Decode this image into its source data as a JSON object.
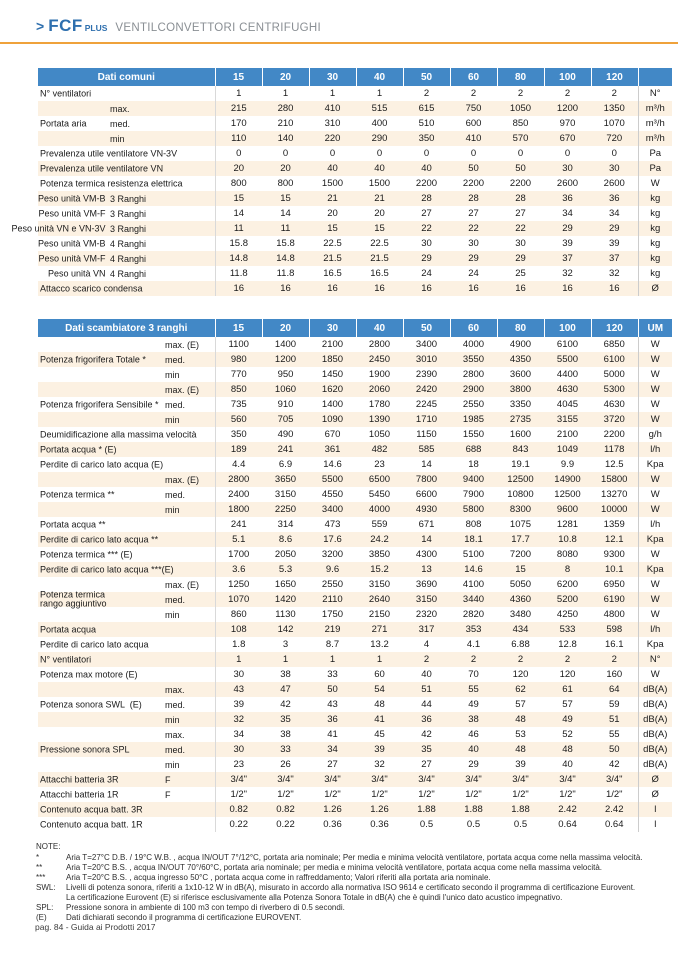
{
  "page_header": {
    "arrow": ">",
    "brand": "FCF",
    "brand_sup": "PLUS",
    "subtitle": "VENTILCONVETTORI CENTRIFUGHI",
    "brand_color": "#2e6fae",
    "accent_color": "#efa23b"
  },
  "table1": {
    "title": "Dati comuni",
    "sizes": [
      "15",
      "20",
      "30",
      "40",
      "50",
      "60",
      "80",
      "100",
      "120"
    ],
    "unit_header": "",
    "header_color": "#4288c6",
    "stripe_color": "#fcf1e2",
    "rows": [
      {
        "label": "N° ventilatori",
        "sub": "",
        "values": [
          "1",
          "1",
          "1",
          "1",
          "2",
          "2",
          "2",
          "2",
          "2"
        ],
        "unit": "N°"
      },
      {
        "label": "",
        "sub": "max.",
        "values": [
          "215",
          "280",
          "410",
          "515",
          "615",
          "750",
          "1050",
          "1200",
          "1350"
        ],
        "unit": "m³/h"
      },
      {
        "label": "Portata aria",
        "sub": "med.",
        "values": [
          "170",
          "210",
          "310",
          "400",
          "510",
          "600",
          "850",
          "970",
          "1070"
        ],
        "unit": "m³/h"
      },
      {
        "label": "",
        "sub": "min",
        "values": [
          "110",
          "140",
          "220",
          "290",
          "350",
          "410",
          "570",
          "670",
          "720"
        ],
        "unit": "m³/h"
      },
      {
        "label": "Prevalenza utile ventilatore VN-3V",
        "sub": "",
        "values": [
          "0",
          "0",
          "0",
          "0",
          "0",
          "0",
          "0",
          "0",
          "0"
        ],
        "unit": "Pa"
      },
      {
        "label": "Prevalenza utile ventilatore VN",
        "sub": "",
        "values": [
          "20",
          "20",
          "40",
          "40",
          "40",
          "50",
          "50",
          "30",
          "30"
        ],
        "unit": "Pa"
      },
      {
        "label": "Potenza termica resistenza elettrica",
        "sub": "",
        "values": [
          "800",
          "800",
          "1500",
          "1500",
          "2200",
          "2200",
          "2200",
          "2600",
          "2600"
        ],
        "unit": "W"
      },
      {
        "label": "Peso unità VM-B",
        "sub": "3 Ranghi",
        "align": "right",
        "values": [
          "15",
          "15",
          "21",
          "21",
          "28",
          "28",
          "28",
          "36",
          "36"
        ],
        "unit": "kg"
      },
      {
        "label": "Peso unità VM-F",
        "sub": "3 Ranghi",
        "align": "right",
        "values": [
          "14",
          "14",
          "20",
          "20",
          "27",
          "27",
          "27",
          "34",
          "34"
        ],
        "unit": "kg"
      },
      {
        "label": "Peso unità VN e VN-3V",
        "sub": "3 Ranghi",
        "align": "right",
        "values": [
          "11",
          "11",
          "15",
          "15",
          "22",
          "22",
          "22",
          "29",
          "29"
        ],
        "unit": "kg"
      },
      {
        "label": "Peso unità VM-B",
        "sub": "4 Ranghi",
        "align": "right",
        "values": [
          "15.8",
          "15.8",
          "22.5",
          "22.5",
          "30",
          "30",
          "30",
          "39",
          "39"
        ],
        "unit": "kg"
      },
      {
        "label": "Peso unità VM-F",
        "sub": "4 Ranghi",
        "align": "right",
        "values": [
          "14.8",
          "14.8",
          "21.5",
          "21.5",
          "29",
          "29",
          "29",
          "37",
          "37"
        ],
        "unit": "kg"
      },
      {
        "label": "Peso unità VN",
        "sub": "4 Ranghi",
        "align": "right",
        "values": [
          "11.8",
          "11.8",
          "16.5",
          "16.5",
          "24",
          "24",
          "25",
          "32",
          "32"
        ],
        "unit": "kg"
      },
      {
        "label": "Attacco scarico condensa",
        "sub": "",
        "values": [
          "16",
          "16",
          "16",
          "16",
          "16",
          "16",
          "16",
          "16",
          "16"
        ],
        "unit": "Ø"
      }
    ]
  },
  "table2": {
    "title": "Dati scambiatore 3 ranghi",
    "sizes": [
      "15",
      "20",
      "30",
      "40",
      "50",
      "60",
      "80",
      "100",
      "120"
    ],
    "unit_header": "UM",
    "header_color": "#4288c6",
    "stripe_color": "#fcf1e2",
    "rows": [
      {
        "label": "",
        "sub": "max. (E)",
        "values": [
          "1100",
          "1400",
          "2100",
          "2800",
          "3400",
          "4000",
          "4900",
          "6100",
          "6850"
        ],
        "unit": "W"
      },
      {
        "label": "Potenza frigorifera Totale *",
        "sub": "med.",
        "values": [
          "980",
          "1200",
          "1850",
          "2450",
          "3010",
          "3550",
          "4350",
          "5500",
          "6100"
        ],
        "unit": "W"
      },
      {
        "label": "",
        "sub": "min",
        "values": [
          "770",
          "950",
          "1450",
          "1900",
          "2390",
          "2800",
          "3600",
          "4400",
          "5000"
        ],
        "unit": "W"
      },
      {
        "label": "",
        "sub": "max. (E)",
        "values": [
          "850",
          "1060",
          "1620",
          "2060",
          "2420",
          "2900",
          "3800",
          "4630",
          "5300"
        ],
        "unit": "W"
      },
      {
        "label": "Potenza frigorifera Sensibile *",
        "sub": "med.",
        "values": [
          "735",
          "910",
          "1400",
          "1780",
          "2245",
          "2550",
          "3350",
          "4045",
          "4630"
        ],
        "unit": "W"
      },
      {
        "label": "",
        "sub": "min",
        "values": [
          "560",
          "705",
          "1090",
          "1390",
          "1710",
          "1985",
          "2735",
          "3155",
          "3720"
        ],
        "unit": "W"
      },
      {
        "label": "Deumidificazione alla massima velocità",
        "sub": "",
        "values": [
          "350",
          "490",
          "670",
          "1050",
          "1150",
          "1550",
          "1600",
          "2100",
          "2200"
        ],
        "unit": "g/h"
      },
      {
        "label": "Portata acqua * (E)",
        "sub": "",
        "values": [
          "189",
          "241",
          "361",
          "482",
          "585",
          "688",
          "843",
          "1049",
          "1178"
        ],
        "unit": "l/h"
      },
      {
        "label": "Perdite di carico lato acqua (E)",
        "sub": "",
        "values": [
          "4.4",
          "6.9",
          "14.6",
          "23",
          "14",
          "18",
          "19.1",
          "9.9",
          "12.5"
        ],
        "unit": "Kpa"
      },
      {
        "label": "",
        "sub": "max. (E)",
        "values": [
          "2800",
          "3650",
          "5500",
          "6500",
          "7800",
          "9400",
          "12500",
          "14900",
          "15800"
        ],
        "unit": "W"
      },
      {
        "label": "Potenza termica **",
        "sub": "med.",
        "values": [
          "2400",
          "3150",
          "4550",
          "5450",
          "6600",
          "7900",
          "10800",
          "12500",
          "13270"
        ],
        "unit": "W"
      },
      {
        "label": "",
        "sub": "min",
        "values": [
          "1800",
          "2250",
          "3400",
          "4000",
          "4930",
          "5800",
          "8300",
          "9600",
          "10000"
        ],
        "unit": "W"
      },
      {
        "label": "Portata acqua **",
        "sub": "",
        "values": [
          "241",
          "314",
          "473",
          "559",
          "671",
          "808",
          "1075",
          "1281",
          "1359"
        ],
        "unit": "l/h"
      },
      {
        "label": "Perdite di carico lato acqua **",
        "sub": "",
        "values": [
          "5.1",
          "8.6",
          "17.6",
          "24.2",
          "14",
          "18.1",
          "17.7",
          "10.8",
          "12.1"
        ],
        "unit": "Kpa"
      },
      {
        "label": "Potenza termica *** (E)",
        "sub": "",
        "values": [
          "1700",
          "2050",
          "3200",
          "3850",
          "4300",
          "5100",
          "7200",
          "8080",
          "9300"
        ],
        "unit": "W"
      },
      {
        "label": "Perdite di carico lato acqua ***(E)",
        "sub": "",
        "values": [
          "3.6",
          "5.3",
          "9.6",
          "15.2",
          "13",
          "14.6",
          "15",
          "8",
          "10.1"
        ],
        "unit": "Kpa"
      },
      {
        "label": "",
        "sub": "max. (E)",
        "values": [
          "1250",
          "1650",
          "2550",
          "3150",
          "3690",
          "4100",
          "5050",
          "6200",
          "6950"
        ],
        "unit": "W"
      },
      {
        "label": "Potenza termica\nrango aggiuntivo",
        "sub": "med.",
        "values": [
          "1070",
          "1420",
          "2110",
          "2640",
          "3150",
          "3440",
          "4360",
          "5200",
          "6190"
        ],
        "unit": "W"
      },
      {
        "label": "",
        "sub": "min",
        "values": [
          "860",
          "1130",
          "1750",
          "2150",
          "2320",
          "2820",
          "3480",
          "4250",
          "4800"
        ],
        "unit": "W"
      },
      {
        "label": "Portata acqua",
        "sub": "",
        "values": [
          "108",
          "142",
          "219",
          "271",
          "317",
          "353",
          "434",
          "533",
          "598"
        ],
        "unit": "l/h"
      },
      {
        "label": "Perdite di carico lato acqua",
        "sub": "",
        "values": [
          "1.8",
          "3",
          "8.7",
          "13.2",
          "4",
          "4.1",
          "6.88",
          "12.8",
          "16.1"
        ],
        "unit": "Kpa"
      },
      {
        "label": "N° ventilatori",
        "sub": "",
        "values": [
          "1",
          "1",
          "1",
          "1",
          "2",
          "2",
          "2",
          "2",
          "2"
        ],
        "unit": "N°"
      },
      {
        "label": "Potenza max motore (E)",
        "sub": "",
        "values": [
          "30",
          "38",
          "33",
          "60",
          "40",
          "70",
          "120",
          "120",
          "160"
        ],
        "unit": "W"
      },
      {
        "label": "",
        "sub": "max.",
        "values": [
          "43",
          "47",
          "50",
          "54",
          "51",
          "55",
          "62",
          "61",
          "64"
        ],
        "unit": "dB(A)"
      },
      {
        "label": "Potenza sonora SWL  (E)",
        "sub": "med.",
        "values": [
          "39",
          "42",
          "43",
          "48",
          "44",
          "49",
          "57",
          "57",
          "59"
        ],
        "unit": "dB(A)"
      },
      {
        "label": "",
        "sub": "min",
        "values": [
          "32",
          "35",
          "36",
          "41",
          "36",
          "38",
          "48",
          "49",
          "51"
        ],
        "unit": "dB(A)"
      },
      {
        "label": "",
        "sub": "max.",
        "values": [
          "34",
          "38",
          "41",
          "45",
          "42",
          "46",
          "53",
          "52",
          "55"
        ],
        "unit": "dB(A)"
      },
      {
        "label": "Pressione sonora SPL",
        "sub": "med.",
        "values": [
          "30",
          "33",
          "34",
          "39",
          "35",
          "40",
          "48",
          "48",
          "50"
        ],
        "unit": "dB(A)"
      },
      {
        "label": "",
        "sub": "min",
        "values": [
          "23",
          "26",
          "27",
          "32",
          "27",
          "29",
          "39",
          "40",
          "42"
        ],
        "unit": "dB(A)"
      },
      {
        "label": "Attacchi batteria 3R",
        "sub": "F",
        "values": [
          "3/4\"",
          "3/4\"",
          "3/4\"",
          "3/4\"",
          "3/4\"",
          "3/4\"",
          "3/4\"",
          "3/4\"",
          "3/4\""
        ],
        "unit": "Ø"
      },
      {
        "label": "Attacchi batteria 1R",
        "sub": "F",
        "values": [
          "1/2\"",
          "1/2\"",
          "1/2\"",
          "1/2\"",
          "1/2\"",
          "1/2\"",
          "1/2\"",
          "1/2\"",
          "1/2\""
        ],
        "unit": "Ø"
      },
      {
        "label": "Contenuto acqua batt. 3R",
        "sub": "",
        "values": [
          "0.82",
          "0.82",
          "1.26",
          "1.26",
          "1.88",
          "1.88",
          "1.88",
          "2.42",
          "2.42"
        ],
        "unit": "l"
      },
      {
        "label": "Contenuto acqua batt. 1R",
        "sub": "",
        "values": [
          "0.22",
          "0.22",
          "0.36",
          "0.36",
          "0.5",
          "0.5",
          "0.5",
          "0.64",
          "0.64"
        ],
        "unit": "l"
      }
    ]
  },
  "notes": {
    "title": "NOTE:",
    "items": [
      {
        "key": "*",
        "text": "Aria T=27°C D.B. / 19°C W.B. , acqua IN/OUT 7°/12°C, portata aria nominale; Per media e minima velocità ventilatore, portata acqua come nella massima velocità."
      },
      {
        "key": "**",
        "text": "Aria T=20°C B.S. , acqua IN/OUT 70°/60°C, portata aria nominale; per media e minima velocità ventilatore, portata acqua come nella massima velocità."
      },
      {
        "key": "***",
        "text": "Aria T=20°C B.S. , acqua ingresso 50°C , portata acqua come in raffreddamento; Valori riferiti alla portata aria nominale."
      },
      {
        "key": "SWL:",
        "text": "Livelli di potenza sonora, riferiti a 1x10-12 W in dB(A), misurato in accordo alla normativa ISO 9614 e certificato secondo il programma di certificazione Eurovent.\nLa certificazione Eurovent (E) si riferisce esclusivamente alla Potenza Sonora Totale in dB(A) che è quindi l'unico dato acustico impegnativo."
      },
      {
        "key": "SPL:",
        "text": "Pressione sonora in ambiente di 100 m3 con tempo di riverbero di 0.5 secondi."
      },
      {
        "key": "(E)",
        "text": "Dati dichiarati secondo il programma di certificazione EUROVENT."
      }
    ]
  },
  "footer": {
    "text": "pag. 84 - Guida ai Prodotti 2017"
  }
}
